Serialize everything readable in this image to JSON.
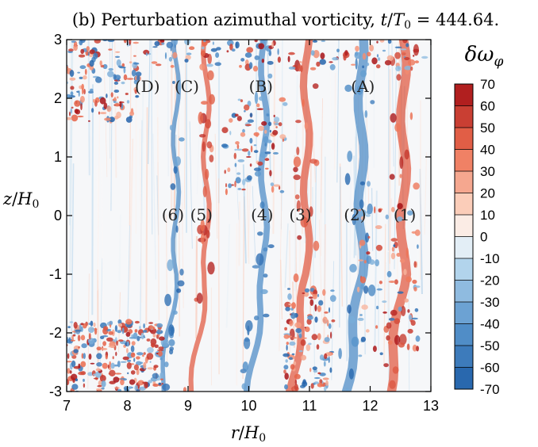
{
  "chart_data": {
    "type": "heatmap",
    "title": "(b) Perturbation azimuthal vorticity, t/T₀ = 444.64.",
    "title_parts": {
      "prefix": "(b) Perturbation azimuthal vorticity, ",
      "t": "t",
      "slash": "/",
      "T": "T",
      "sub0": "0",
      "suffix": " = 444.64."
    },
    "xlabel": {
      "main": "r",
      "slash": "/",
      "H": "H",
      "sub": "0"
    },
    "ylabel": {
      "main": "z",
      "slash": "/",
      "H": "H",
      "sub": "0"
    },
    "xlim": [
      7,
      13
    ],
    "ylim": [
      -3,
      3
    ],
    "x_ticks": [
      7,
      8,
      9,
      10,
      11,
      12,
      13
    ],
    "y_ticks": [
      -3,
      -2,
      -1,
      0,
      1,
      2,
      3
    ],
    "colorbar": {
      "label": {
        "delta": "δ",
        "omega": "ω",
        "sub": "φ"
      },
      "min": -70,
      "max": 70,
      "ticks": [
        70,
        60,
        50,
        40,
        30,
        20,
        10,
        0,
        -10,
        -20,
        -30,
        -40,
        -50,
        -60,
        -70
      ],
      "tick_labels": [
        "70",
        "60",
        "50",
        "40",
        "30",
        "20",
        "10",
        "0",
        "-10",
        "-20",
        "-30",
        "-40",
        "-50",
        "-60",
        "-70"
      ],
      "colors": {
        "pos_high": "#a50f15",
        "pos_mid": "#ef6a4a",
        "zero": "#fbfbfb",
        "neg_mid": "#6fa6d1",
        "neg_high": "#1f5fa8"
      }
    },
    "annotations": [
      {
        "text": "(A)",
        "r": 11.88,
        "z": 2.18
      },
      {
        "text": "(B)",
        "r": 10.2,
        "z": 2.18
      },
      {
        "text": "(C)",
        "r": 8.98,
        "z": 2.18
      },
      {
        "text": "(D)",
        "r": 8.33,
        "z": 2.18
      },
      {
        "text": "(1)",
        "r": 12.57,
        "z": -0.01
      },
      {
        "text": "(2)",
        "r": 11.75,
        "z": -0.01
      },
      {
        "text": "(3)",
        "r": 10.85,
        "z": -0.01
      },
      {
        "text": "(4)",
        "r": 10.22,
        "z": -0.01
      },
      {
        "text": "(5)",
        "r": 9.22,
        "z": -0.01
      },
      {
        "text": "(6)",
        "r": 8.75,
        "z": -0.01
      }
    ],
    "structures": [
      {
        "name": "(1)",
        "r_center": 12.55,
        "sign": "positive",
        "r_width": 0.15
      },
      {
        "name": "(2)",
        "r_center": 11.85,
        "sign": "negative",
        "r_width": 0.15
      },
      {
        "name": "(3)",
        "r_center": 10.95,
        "sign": "positive",
        "r_width": 0.12
      },
      {
        "name": "(4)",
        "r_center": 10.25,
        "sign": "negative",
        "r_width": 0.1
      },
      {
        "name": "(5)",
        "r_center": 9.3,
        "sign": "positive",
        "r_width": 0.08
      },
      {
        "name": "(6)",
        "r_center": 8.8,
        "sign": "negative",
        "r_width": 0.07
      }
    ]
  }
}
